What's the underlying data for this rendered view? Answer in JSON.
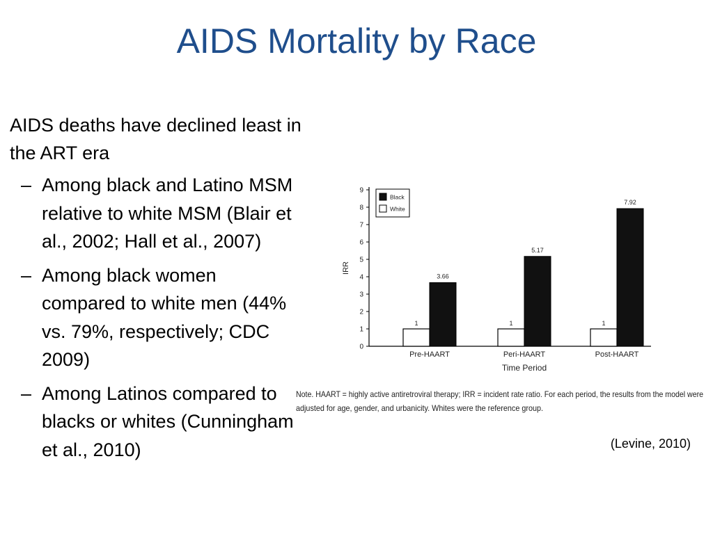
{
  "slide": {
    "title": "AIDS Mortality by Race",
    "lead": "AIDS deaths have declined least in the ART era",
    "bullets": [
      "Among black and Latino MSM relative to white MSM (Blair et al., 2002; Hall et al., 2007)",
      "Among black women compared to white men (44% vs. 79%, respectively; CDC 2009)",
      "Among Latinos compared to blacks or whites (Cunningham et al., 2010)"
    ],
    "dash": "–",
    "citation": "(Levine, 2010)"
  },
  "chart_data": {
    "type": "bar",
    "categories": [
      "Pre-HAART",
      "Peri-HAART",
      "Post-HAART"
    ],
    "series": [
      {
        "name": "White",
        "values": [
          1,
          1,
          1
        ],
        "data_labels": [
          "1",
          "1",
          "1"
        ],
        "color": "#ffffff"
      },
      {
        "name": "Black",
        "values": [
          3.66,
          5.17,
          7.92
        ],
        "data_labels": [
          "3.66",
          "5.17",
          "7.92"
        ],
        "color": "#111111"
      }
    ],
    "legend_order": [
      "Black",
      "White"
    ],
    "legend_position": "top-left",
    "xlabel": "Time Period",
    "ylabel": "IRR",
    "ylim": [
      0,
      9
    ],
    "yticks": [
      "0",
      "1",
      "2",
      "3",
      "4",
      "5",
      "6",
      "7",
      "8",
      "9"
    ],
    "grid": false,
    "note_lines": [
      "Note. HAART = highly active antiretroviral therapy; IRR = incident rate ratio. For each period, the results from the model were",
      "adjusted for age, gender, and urbanicity. Whites were the reference group."
    ]
  }
}
